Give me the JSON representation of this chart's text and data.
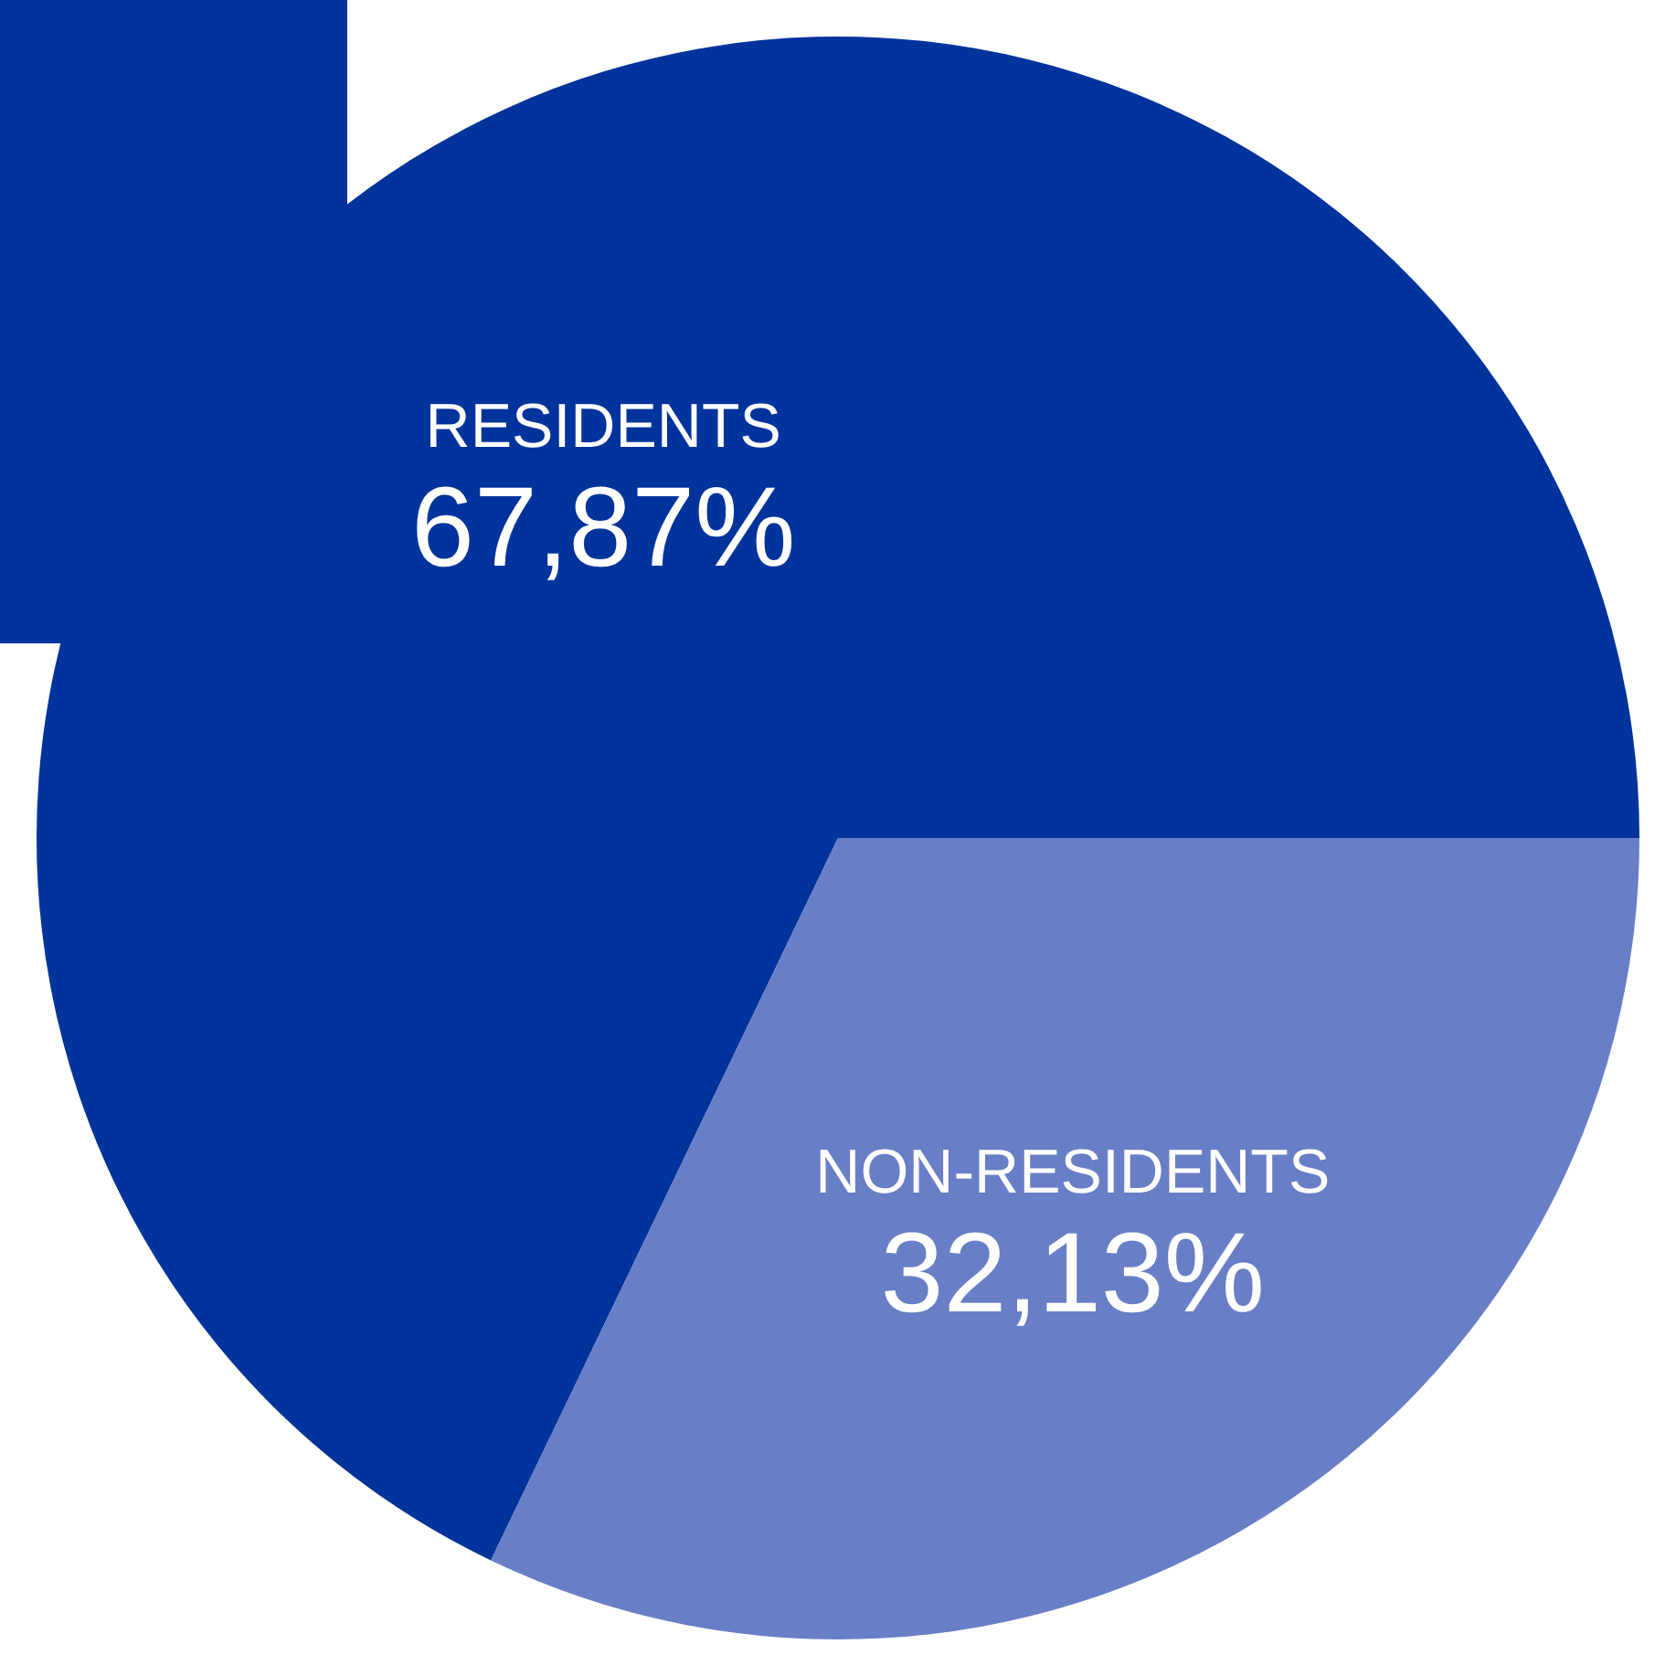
{
  "chart_data": {
    "type": "pie",
    "categories": [
      "RESIDENTS",
      "NON-RESIDENTS"
    ],
    "values": [
      67.87,
      32.13
    ],
    "colors": [
      "#00339c",
      "#687ec6"
    ],
    "value_labels": [
      "67,87%",
      "32,13%"
    ],
    "legend": false
  }
}
